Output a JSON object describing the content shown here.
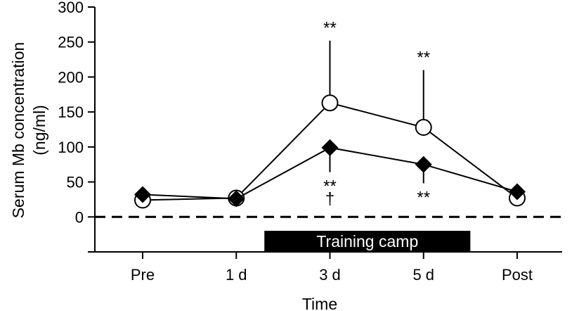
{
  "chart_data": {
    "type": "line",
    "title": "",
    "xlabel": "Time",
    "ylabel": "Serum Mb concentration\n(ng/ml)",
    "categories": [
      "Pre",
      "1 d",
      "3 d",
      "5 d",
      "Post"
    ],
    "yticks": [
      0,
      50,
      100,
      150,
      200,
      250,
      300
    ],
    "ylim": [
      -50,
      300
    ],
    "grid": false,
    "legend": "none",
    "baseline": 0,
    "series": [
      {
        "marker": "open-circle",
        "values": [
          24,
          27,
          163,
          128,
          27
        ],
        "error_upper": [
          null,
          null,
          252,
          210,
          null
        ],
        "annotation": [
          "",
          "",
          "**",
          "**",
          ""
        ]
      },
      {
        "marker": "filled-diamond",
        "values": [
          32,
          26,
          99,
          75,
          36
        ],
        "error_lower": [
          null,
          null,
          64,
          48,
          null
        ],
        "annotation": [
          "",
          "",
          "**\n†",
          "**",
          ""
        ]
      }
    ],
    "bar_annotation": {
      "label": "Training camp",
      "from_category": 1,
      "to_category": 3,
      "start_offset": 0.3,
      "end_offset": 0.5
    }
  }
}
